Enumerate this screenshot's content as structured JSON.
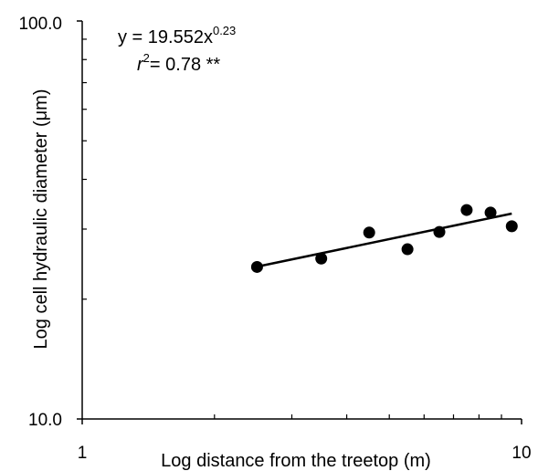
{
  "chart_data": {
    "type": "scatter",
    "title": "",
    "xlabel": "Log distance from the treetop (m)",
    "ylabel": "Log cell hydraulic diameter (μm)",
    "xscale": "log",
    "yscale": "log",
    "xlim": [
      1,
      10
    ],
    "ylim": [
      10,
      100
    ],
    "x_tick_labels": [
      "1",
      "10"
    ],
    "y_tick_labels": [
      "10.0",
      "100.0"
    ],
    "grid": false,
    "legend": "none",
    "points": [
      {
        "x": 2.5,
        "y": 24.1
      },
      {
        "x": 3.5,
        "y": 25.3
      },
      {
        "x": 4.5,
        "y": 29.4
      },
      {
        "x": 5.5,
        "y": 26.7
      },
      {
        "x": 6.5,
        "y": 29.5
      },
      {
        "x": 7.5,
        "y": 33.5
      },
      {
        "x": 8.5,
        "y": 33.0
      },
      {
        "x": 9.5,
        "y": 30.5
      }
    ],
    "fit": {
      "type": "power",
      "a": 19.552,
      "b": 0.23,
      "x_range": [
        2.5,
        9.5
      ]
    },
    "annotations": {
      "equation_prefix": "y = 19.552x",
      "equation_exponent": "0.23",
      "r2_symbol": "r",
      "r2_superscript": "2",
      "r2_value": "= 0.78 **"
    },
    "colors": {
      "marker": "#000000",
      "line": "#000000",
      "axis": "#000000"
    }
  }
}
